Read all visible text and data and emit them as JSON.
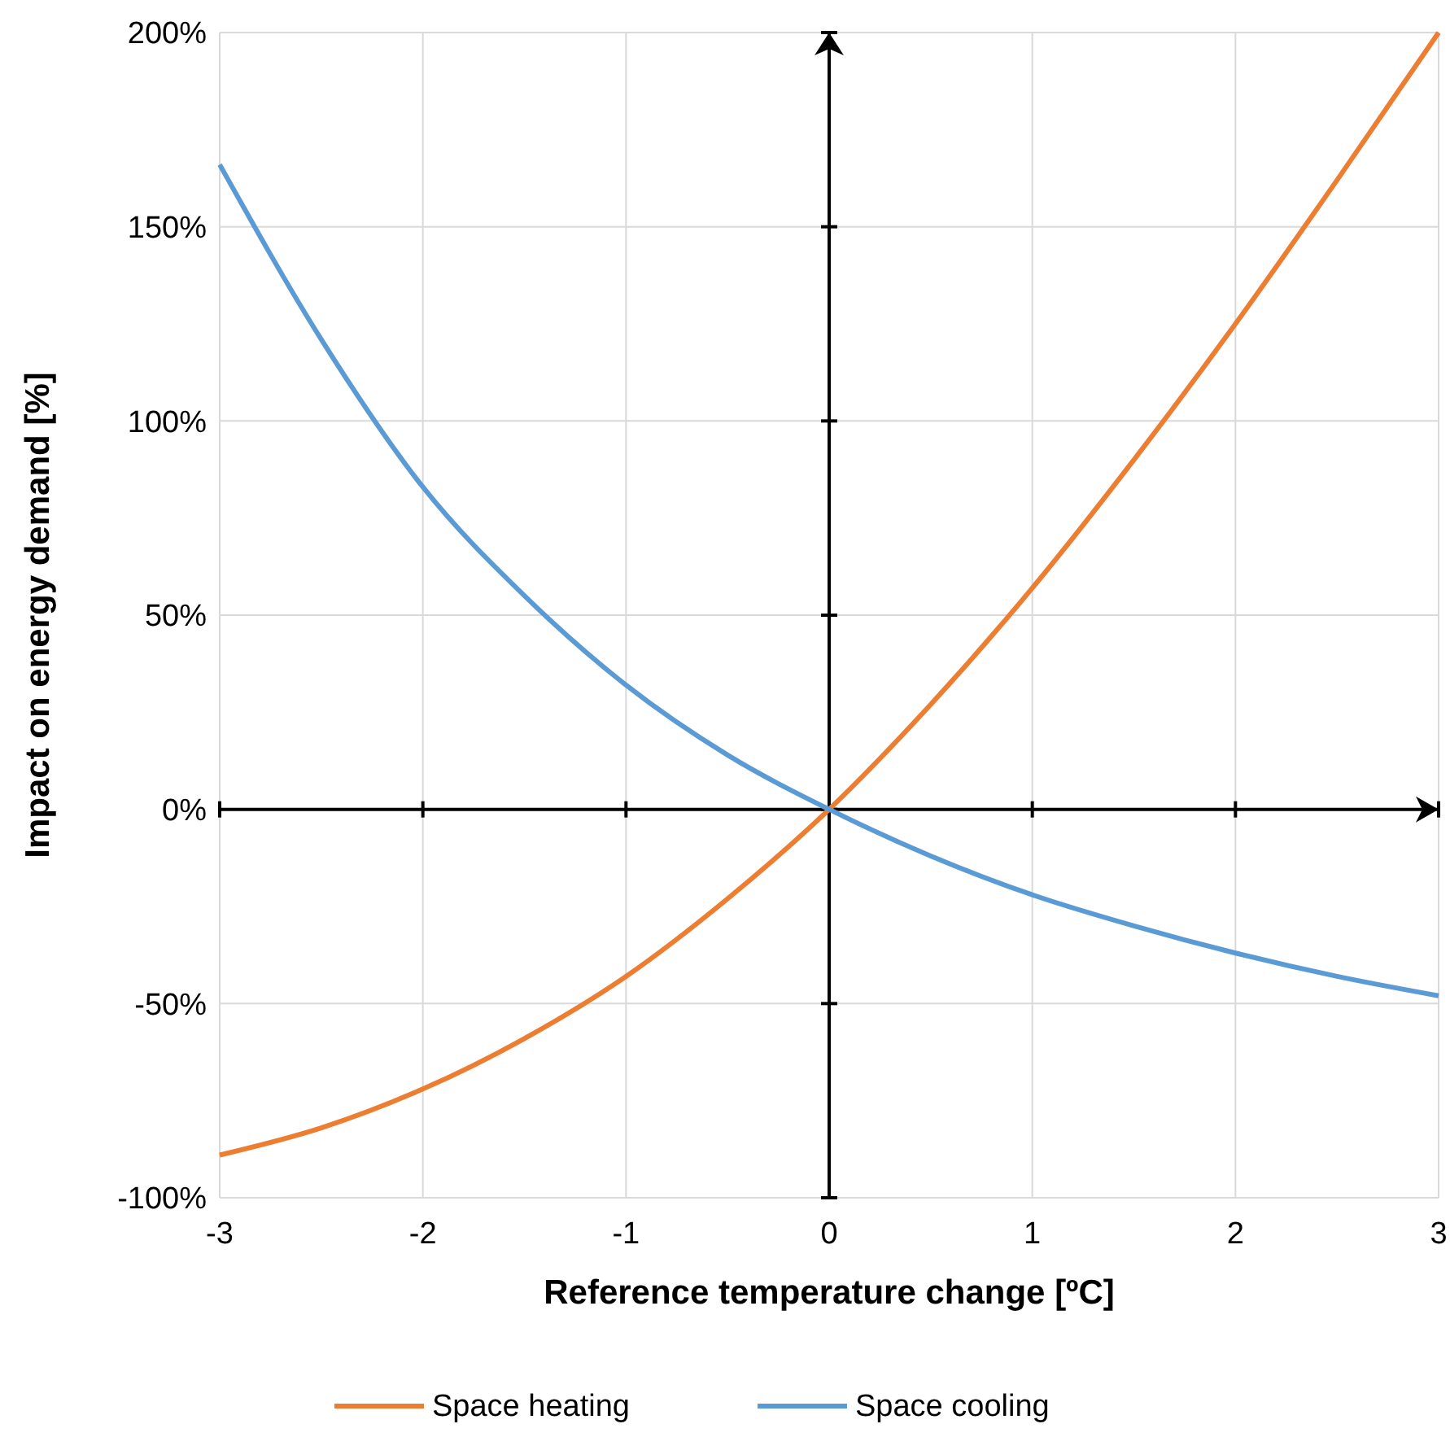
{
  "chart_data": {
    "type": "line",
    "xlabel": "Reference temperature change [ºC]",
    "ylabel": "Impact on energy demand [%]",
    "x": [
      -3,
      -2.5,
      -2,
      -1.5,
      -1,
      -0.5,
      0,
      0.5,
      1,
      1.5,
      2,
      2.5,
      3
    ],
    "series": [
      {
        "name": "Space heating",
        "color": "#ed7d31",
        "values": [
          -89,
          -82,
          -72,
          -59,
          -43,
          -23,
          0,
          27,
          57,
          90,
          125,
          162,
          200
        ]
      },
      {
        "name": "Space cooling",
        "color": "#5b9bd5",
        "values": [
          166,
          121,
          83,
          55,
          32,
          14,
          0,
          -12,
          -22,
          -30,
          -37,
          -43,
          -48
        ]
      }
    ],
    "xlim": [
      -3,
      3
    ],
    "xticks": [
      -3,
      -2,
      -1,
      0,
      1,
      2,
      3
    ],
    "ylim": [
      -100,
      200
    ],
    "yticks": [
      {
        "value": -100,
        "label": "-100%"
      },
      {
        "value": -50,
        "label": "-50%"
      },
      {
        "value": 0,
        "label": "0%"
      },
      {
        "value": 50,
        "label": "50%"
      },
      {
        "value": 100,
        "label": "100%"
      },
      {
        "value": 150,
        "label": "150%"
      },
      {
        "value": 200,
        "label": "200%"
      }
    ],
    "grid": true,
    "legend": "bottom",
    "marker": "none",
    "line_style": "solid"
  }
}
